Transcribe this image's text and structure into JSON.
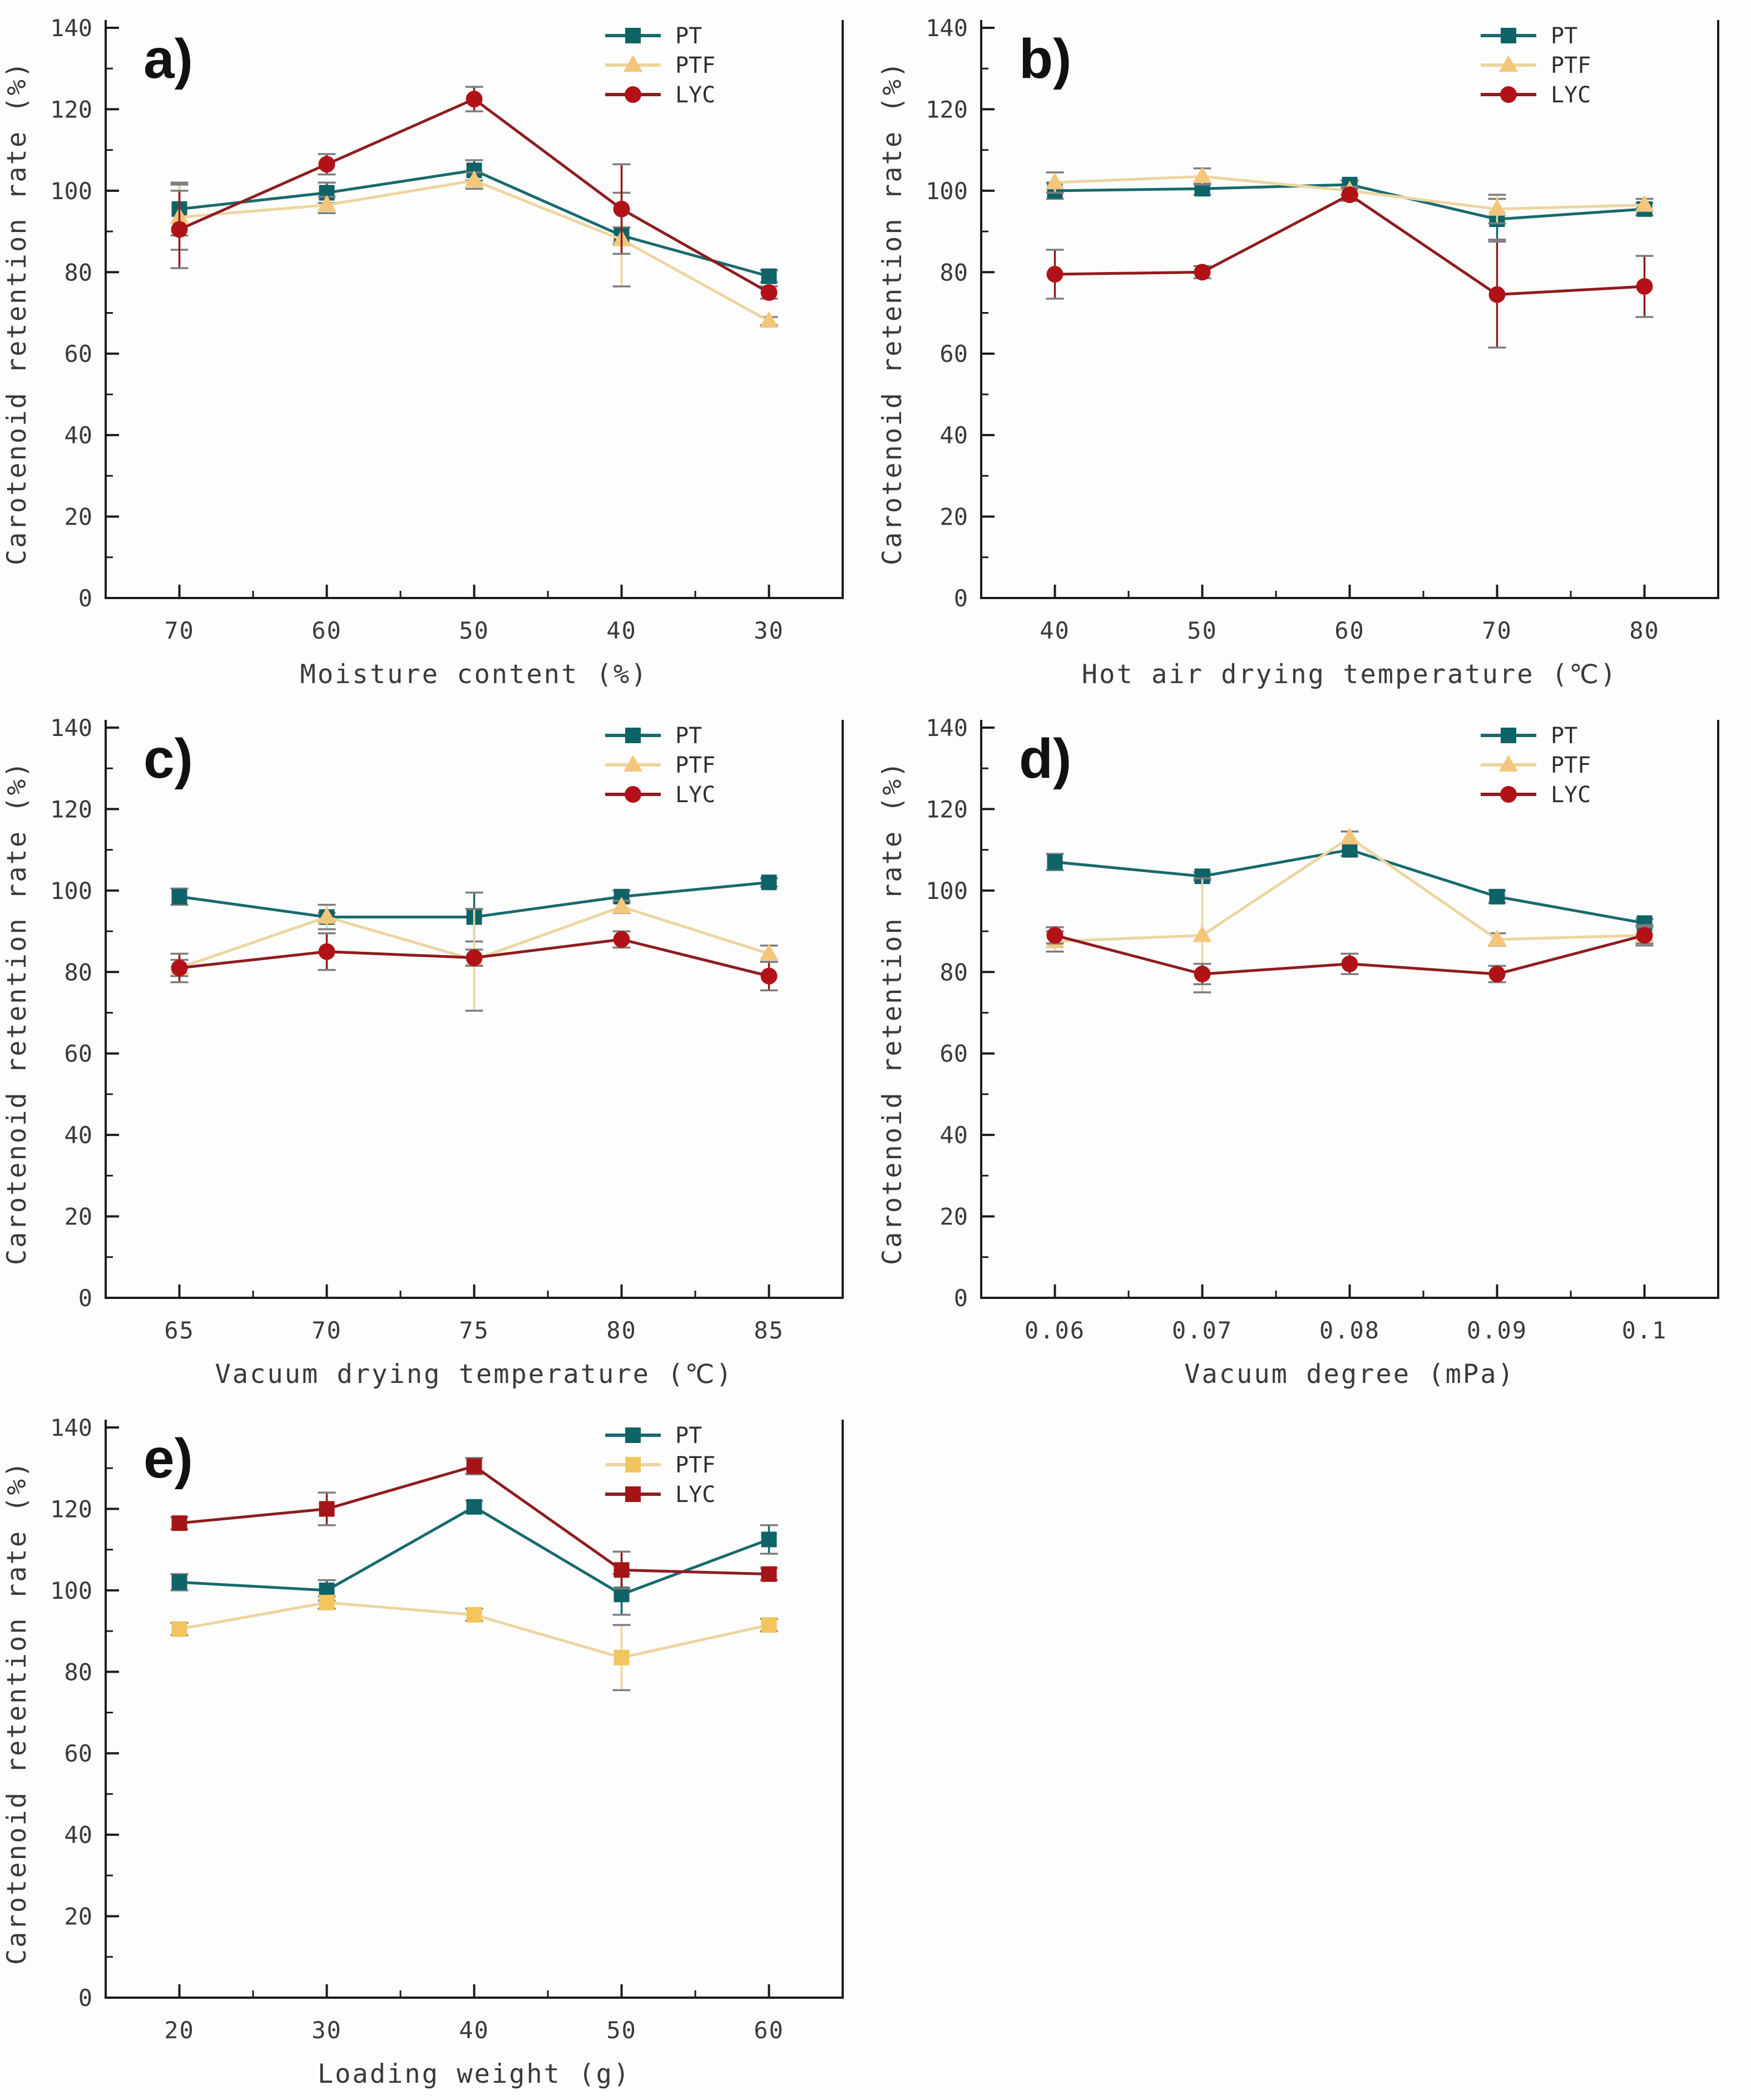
{
  "figure": {
    "description": "Five line charts (a-e) of carotenoid retention rate versus drying process parameters",
    "axis_color": "#1b1b1b",
    "tick_label_color": "#3a3a3a",
    "error_cap_color": "#7d7d7d",
    "background_color": "#fdfdfd",
    "legend_labels": [
      "PT",
      "PTF",
      "LYC"
    ]
  },
  "chart_data": [
    {
      "type": "line",
      "panel_label": "a)",
      "categories": [
        "70",
        "60",
        "50",
        "40",
        "30"
      ],
      "xlabel": "Moisture content (%)",
      "ylabel": "Carotenoid retention rate (%)",
      "ylim": [
        0,
        140
      ],
      "ytick_step": 20,
      "grid": false,
      "legend_position": "top-right",
      "series": [
        {
          "name": "PT",
          "line_color": "#176a6d",
          "marker_color": "#0e6367",
          "marker": "square",
          "values": [
            95.5,
            99.5,
            105,
            89,
            79
          ],
          "errors": [
            6.5,
            2.5,
            2.5,
            2,
            1.5
          ]
        },
        {
          "name": "PTF",
          "line_color": "#edd5a0",
          "marker_color": "#f4c67c",
          "marker": "triangle",
          "values": [
            93.5,
            96.5,
            102.5,
            88,
            68
          ],
          "errors": [
            8,
            2,
            2,
            11.5,
            1
          ]
        },
        {
          "name": "LYC",
          "line_color": "#8e1c1e",
          "marker_color": "#b01217",
          "marker": "circle",
          "values": [
            90.5,
            106.5,
            122.5,
            95.5,
            75
          ],
          "errors": [
            9.5,
            2.5,
            3,
            11,
            1.5
          ]
        }
      ]
    },
    {
      "type": "line",
      "panel_label": "b)",
      "categories": [
        "40",
        "50",
        "60",
        "70",
        "80"
      ],
      "xlabel": "Hot air drying temperature (℃)",
      "ylabel": "Carotenoid retention rate (%)",
      "ylim": [
        0,
        140
      ],
      "ytick_step": 20,
      "grid": false,
      "legend_position": "top-right",
      "series": [
        {
          "name": "PT",
          "line_color": "#176a6d",
          "marker_color": "#0e6367",
          "marker": "square",
          "values": [
            100,
            100.5,
            101.5,
            93,
            95.5
          ],
          "errors": [
            2,
            1.5,
            1,
            5,
            1.5
          ]
        },
        {
          "name": "PTF",
          "line_color": "#edd5a0",
          "marker_color": "#f4c67c",
          "marker": "triangle",
          "values": [
            102,
            103.5,
            100,
            95.5,
            96.5
          ],
          "errors": [
            2.5,
            2,
            1,
            3.5,
            1.5
          ]
        },
        {
          "name": "LYC",
          "line_color": "#8e1c1e",
          "marker_color": "#b01217",
          "marker": "circle",
          "values": [
            79.5,
            80,
            99,
            74.5,
            76.5
          ],
          "errors": [
            6,
            1.5,
            1.5,
            13,
            7.5
          ]
        }
      ]
    },
    {
      "type": "line",
      "panel_label": "c)",
      "categories": [
        "65",
        "70",
        "75",
        "80",
        "85"
      ],
      "xlabel": "Vacuum drying temperature (℃)",
      "ylabel": "Carotenoid retention rate (%)",
      "ylim": [
        0,
        140
      ],
      "ytick_step": 20,
      "grid": false,
      "legend_position": "top-right",
      "series": [
        {
          "name": "PT",
          "line_color": "#176a6d",
          "marker_color": "#0e6367",
          "marker": "square",
          "values": [
            98.5,
            93.5,
            93.5,
            98.5,
            102
          ],
          "errors": [
            2,
            1,
            6,
            1.5,
            1
          ]
        },
        {
          "name": "PTF",
          "line_color": "#edd5a0",
          "marker_color": "#f4c67c",
          "marker": "triangle",
          "values": [
            81,
            93.5,
            83,
            96,
            84.5
          ],
          "errors": [
            2,
            3,
            12.5,
            1.5,
            2
          ]
        },
        {
          "name": "LYC",
          "line_color": "#8e1c1e",
          "marker_color": "#b01217",
          "marker": "circle",
          "values": [
            81,
            85,
            83.5,
            88,
            79
          ],
          "errors": [
            3.5,
            4.5,
            2,
            2,
            3.5
          ]
        }
      ]
    },
    {
      "type": "line",
      "panel_label": "d)",
      "categories": [
        "0.06",
        "0.07",
        "0.08",
        "0.09",
        "0.1"
      ],
      "xlabel": "Vacuum degree (mPa)",
      "ylabel": "Carotenoid retention rate (%)",
      "ylim": [
        0,
        140
      ],
      "ytick_step": 20,
      "grid": false,
      "legend_position": "top-right",
      "series": [
        {
          "name": "PT",
          "line_color": "#176a6d",
          "marker_color": "#0e6367",
          "marker": "square",
          "values": [
            107,
            103.5,
            110,
            98.5,
            92
          ],
          "errors": [
            2,
            1,
            1.5,
            1.5,
            1
          ]
        },
        {
          "name": "PTF",
          "line_color": "#edd5a0",
          "marker_color": "#f4c67c",
          "marker": "triangle",
          "values": [
            87.5,
            89,
            113,
            88,
            89
          ],
          "errors": [
            2.5,
            14,
            1.5,
            1.5,
            2.5
          ]
        },
        {
          "name": "LYC",
          "line_color": "#8e1c1e",
          "marker_color": "#b01217",
          "marker": "circle",
          "values": [
            89,
            79.5,
            82,
            79.5,
            89
          ],
          "errors": [
            2,
            2.5,
            2.5,
            2,
            2
          ]
        }
      ]
    },
    {
      "type": "line",
      "panel_label": "e)",
      "categories": [
        "20",
        "30",
        "40",
        "50",
        "60"
      ],
      "xlabel": "Loading weight (g)",
      "ylabel": "Carotenoid retention rate (%)",
      "ylim": [
        0,
        140
      ],
      "ytick_step": 20,
      "grid": false,
      "legend_position": "top-right",
      "series": [
        {
          "name": "PT",
          "line_color": "#176a6d",
          "marker_color": "#0e6367",
          "marker": "square",
          "values": [
            102,
            100,
            120.5,
            99,
            112.5
          ],
          "errors": [
            2,
            2.5,
            1.5,
            5,
            3.5
          ]
        },
        {
          "name": "PTF",
          "line_color": "#edd5a0",
          "marker_color": "#f2c55e",
          "marker": "square",
          "values": [
            90.5,
            97,
            94,
            83.5,
            91.5
          ],
          "errors": [
            1.5,
            1.5,
            1.5,
            8,
            1.5
          ]
        },
        {
          "name": "LYC",
          "line_color": "#8e1c1e",
          "marker_color": "#a51417",
          "marker": "square",
          "values": [
            116.5,
            120,
            130.5,
            105,
            104
          ],
          "errors": [
            1.5,
            4,
            2,
            4.5,
            1.5
          ]
        }
      ]
    }
  ]
}
